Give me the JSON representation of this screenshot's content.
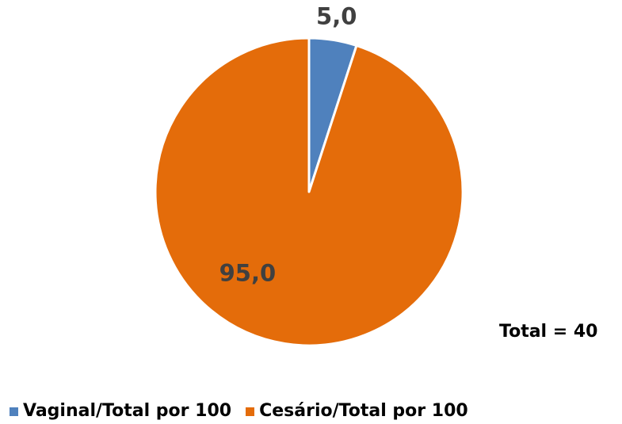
{
  "chart_data": {
    "type": "pie",
    "categories": [
      "Vaginal/Total por 100",
      "Cesário/Total por 100"
    ],
    "values": [
      5.0,
      95.0
    ],
    "value_labels": [
      "5,0",
      "95,0"
    ],
    "colors": [
      "#4F81BD",
      "#E46C0A"
    ],
    "start_angle": "12 o'clock",
    "direction": "clockwise",
    "legend_position": "bottom-left",
    "annotation": "Total = 40"
  }
}
